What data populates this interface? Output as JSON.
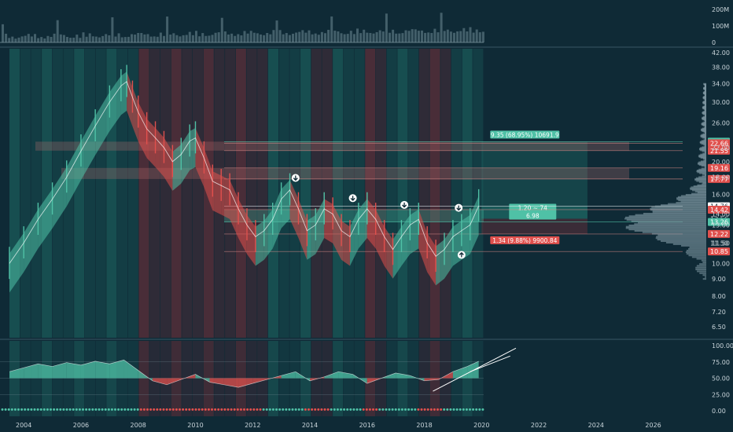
{
  "chart_data": {
    "type": "line",
    "title": "",
    "colors": {
      "background": "#0f2a36",
      "bull": "#4fc1a6",
      "bear": "#e0504d",
      "bull_zone": "#1f6b66",
      "bear_zone": "#7a2f3a",
      "grid": "#23414d",
      "text": "#c9d4da"
    },
    "x_ticks": [
      "2004",
      "2006",
      "2008",
      "2010",
      "2012",
      "2014",
      "2016",
      "2018",
      "2020",
      "2022",
      "2024",
      "2026"
    ],
    "volume_axis": {
      "labels": [
        "200M",
        "100M",
        "0"
      ],
      "values": [
        200,
        100,
        0
      ]
    },
    "price_axis": {
      "scale": "log",
      "labels": [
        "42.00",
        "38.00",
        "34.00",
        "30.00",
        "26.00",
        "22.00",
        "20.00",
        "18.00",
        "16.00",
        "14.00",
        "13.00",
        "11.50",
        "10.00",
        "9.00",
        "8.00",
        "7.20",
        "6.50"
      ],
      "values": [
        42,
        38,
        34,
        30,
        26,
        22,
        20,
        18,
        16,
        14,
        13,
        11.5,
        10,
        9,
        8,
        7.2,
        6.5
      ]
    },
    "oscillator_axis": {
      "labels": [
        "100.00",
        "75.00",
        "50.00",
        "25.00",
        "0.00"
      ],
      "values": [
        100,
        75,
        50,
        25,
        0
      ]
    },
    "price_series": {
      "name": "",
      "x": [
        2003.5,
        2004.0,
        2004.5,
        2005.0,
        2005.5,
        2006.0,
        2006.5,
        2007.0,
        2007.4,
        2007.6,
        2007.8,
        2008.0,
        2008.3,
        2008.6,
        2008.9,
        2009.2,
        2009.5,
        2009.8,
        2010.0,
        2010.3,
        2010.6,
        2010.9,
        2011.2,
        2011.5,
        2011.8,
        2012.1,
        2012.4,
        2012.7,
        2013.0,
        2013.3,
        2013.6,
        2013.9,
        2014.2,
        2014.5,
        2014.8,
        2015.1,
        2015.4,
        2015.7,
        2016.0,
        2016.3,
        2016.6,
        2016.9,
        2017.2,
        2017.5,
        2017.8,
        2018.1,
        2018.4,
        2018.7,
        2019.0,
        2019.3,
        2019.6,
        2019.9
      ],
      "values": [
        10.0,
        11.5,
        13.5,
        15.5,
        18.0,
        21.5,
        25.5,
        30.0,
        33.5,
        34.5,
        31.0,
        28.0,
        25.0,
        23.5,
        22.0,
        20.0,
        21.0,
        23.0,
        23.5,
        20.5,
        17.5,
        17.0,
        16.5,
        14.5,
        13.0,
        12.0,
        12.5,
        13.5,
        15.5,
        16.5,
        14.5,
        12.5,
        13.0,
        14.5,
        14.0,
        12.5,
        12.0,
        13.5,
        14.5,
        13.5,
        12.0,
        11.0,
        12.0,
        13.0,
        13.5,
        11.5,
        10.5,
        11.0,
        12.0,
        12.5,
        13.0,
        14.8
      ]
    },
    "oscillator_series": {
      "name": "",
      "x": [
        2003.5,
        2004.0,
        2004.5,
        2005.0,
        2005.5,
        2006.0,
        2006.5,
        2007.0,
        2007.5,
        2008.0,
        2008.5,
        2009.0,
        2009.5,
        2010.0,
        2010.5,
        2011.0,
        2011.5,
        2012.0,
        2012.5,
        2013.0,
        2013.5,
        2014.0,
        2014.5,
        2015.0,
        2015.5,
        2016.0,
        2016.5,
        2017.0,
        2017.5,
        2018.0,
        2018.5,
        2019.0,
        2019.5,
        2019.9
      ],
      "values": [
        60,
        66,
        72,
        68,
        74,
        70,
        76,
        72,
        78,
        62,
        46,
        40,
        48,
        56,
        44,
        40,
        36,
        42,
        48,
        54,
        60,
        46,
        52,
        60,
        56,
        42,
        50,
        58,
        54,
        46,
        48,
        60,
        68,
        76
      ]
    },
    "ranges": [
      {
        "label": "9.35 (68.95%) 10691.9",
        "from_price": 13.56,
        "to_price": 22.91,
        "x_start": 2020.0,
        "x_end": 2023.7,
        "type": "bull"
      },
      {
        "label": "1.20 ~ 74",
        "sub_label": "6.98",
        "from_price": 13.56,
        "to_price": 14.76,
        "x_start": 2020.0,
        "x_end": 2023.7,
        "type": "bull"
      },
      {
        "label": "1.34 (9.88%) 9900.84",
        "from_price": 12.22,
        "to_price": 13.56,
        "x_start": 2020.0,
        "x_end": 2023.7,
        "type": "bear"
      }
    ],
    "horizontal_levels": [
      {
        "price": 22.91,
        "tag": "22.91",
        "type": "bull"
      },
      {
        "price": 22.66,
        "tag": "22.66",
        "type": "bear"
      },
      {
        "price": 21.55,
        "tag": "21.55",
        "type": "bear"
      },
      {
        "price": 19.16,
        "tag": "19.16",
        "type": "bear"
      },
      {
        "price": 17.77,
        "tag": "17.77",
        "type": "bear"
      },
      {
        "price": 14.76,
        "tag": "14.76",
        "type": "white"
      },
      {
        "price": 14.42,
        "tag": "14.42",
        "type": "bear"
      },
      {
        "price": 13.56,
        "tag": "13.56",
        "type": "plain"
      },
      {
        "price": 13.26,
        "tag": "13.26",
        "type": "bull"
      },
      {
        "price": 12.22,
        "tag": "12.22",
        "type": "bear"
      },
      {
        "price": 11.5,
        "tag": "11.50",
        "type": "plain"
      },
      {
        "price": 10.85,
        "tag": "10.85",
        "type": "bear"
      }
    ],
    "signals": [
      {
        "x": 2013.5,
        "price": 17.9,
        "direction": "down"
      },
      {
        "x": 2015.5,
        "price": 15.6,
        "direction": "down"
      },
      {
        "x": 2017.3,
        "price": 14.9,
        "direction": "down"
      },
      {
        "x": 2019.2,
        "price": 14.6,
        "direction": "down"
      },
      {
        "x": 2019.3,
        "price": 10.6,
        "direction": "up"
      }
    ],
    "trend_lines": [
      {
        "x1": 2018.3,
        "y1": 30,
        "x2": 2021.2,
        "y2": 96
      },
      {
        "x1": 2019.6,
        "y1": 60,
        "x2": 2021.0,
        "y2": 84
      }
    ],
    "grid": false,
    "legend": "none"
  }
}
